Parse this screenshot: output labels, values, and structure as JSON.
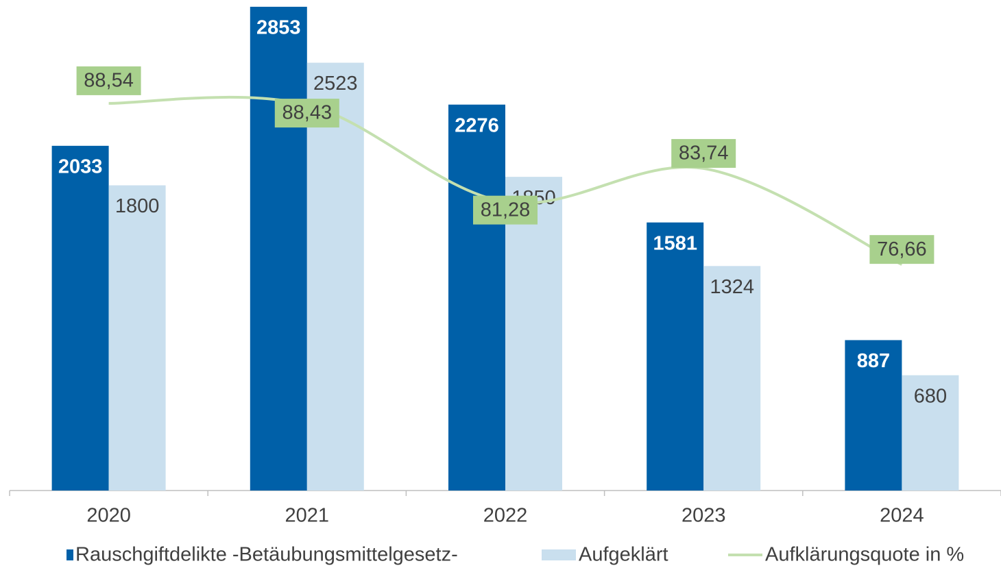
{
  "chart_data": {
    "type": "bar",
    "categories": [
      "2020",
      "2021",
      "2022",
      "2023",
      "2024"
    ],
    "series": [
      {
        "name": "Rauschgiftdelikte -Betäubungsmittelgesetz-",
        "color": "#0060a8",
        "values": [
          2033,
          2853,
          2276,
          1581,
          887
        ]
      },
      {
        "name": "Aufgeklärt",
        "color": "#c9dfee",
        "values": [
          1800,
          2523,
          1850,
          1324,
          680
        ]
      },
      {
        "name": "Aufklärungsquote in %",
        "type": "line",
        "axis": "y2",
        "color": "#c4e0b0",
        "label_color": "#a8d08d",
        "values": [
          88.54,
          88.43,
          81.28,
          83.74,
          76.66
        ],
        "value_labels": [
          "88,54",
          "88,43",
          "81,28",
          "83,74",
          "76,66"
        ]
      }
    ],
    "ylim": [
      0,
      3000
    ],
    "y2lim": [
      60,
      100
    ],
    "grid": false,
    "legend": "bottom"
  }
}
